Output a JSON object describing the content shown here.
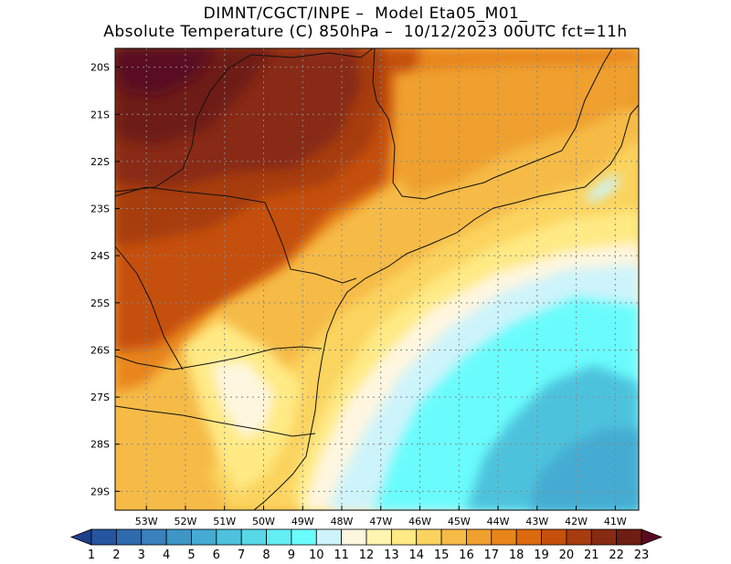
{
  "header": {
    "line1": "DIMNT/CGCT/INPE –  Model Eta05_M01_",
    "line2": "Absolute Temperature (C) 850hPa –  10/12/2023 00UTC fct=11h"
  },
  "map": {
    "lat_labels": [
      "20S",
      "21S",
      "22S",
      "23S",
      "24S",
      "25S",
      "26S",
      "27S",
      "28S",
      "29S"
    ],
    "lon_labels": [
      "53W",
      "52W",
      "51W",
      "50W",
      "49W",
      "48W",
      "47W",
      "46W",
      "45W",
      "44W",
      "43W",
      "42W",
      "41W"
    ],
    "lat_values": [
      -20,
      -21,
      -22,
      -23,
      -24,
      -25,
      -26,
      -27,
      -28,
      -29
    ],
    "lon_values": [
      -53,
      -52,
      -51,
      -50,
      -49,
      -48,
      -47,
      -46,
      -45,
      -44,
      -43,
      -42,
      -41
    ],
    "extent": {
      "lon_min": -53.8,
      "lon_max": -40.4,
      "lat_max": -19.6,
      "lat_min": -29.4
    },
    "gridlines": true
  },
  "colorbar": {
    "labels": [
      "1",
      "2",
      "3",
      "4",
      "5",
      "6",
      "7",
      "8",
      "9",
      "10",
      "11",
      "12",
      "13",
      "14",
      "15",
      "16",
      "17",
      "18",
      "19",
      "20",
      "21",
      "22",
      "23"
    ],
    "colors": [
      "#1e3f8c",
      "#25559f",
      "#2f6aae",
      "#3a80bc",
      "#3d96c6",
      "#45abd2",
      "#4ec2dd",
      "#57d8e8",
      "#63eef3",
      "#6afcfc",
      "#cdf4fb",
      "#fff6e0",
      "#fff5b0",
      "#ffea85",
      "#fbd45f",
      "#f6bb47",
      "#efa02e",
      "#e8851a",
      "#db6a0d",
      "#c5500c",
      "#a73c0f",
      "#882a12",
      "#6e1d12",
      "#5a0a20"
    ]
  }
}
